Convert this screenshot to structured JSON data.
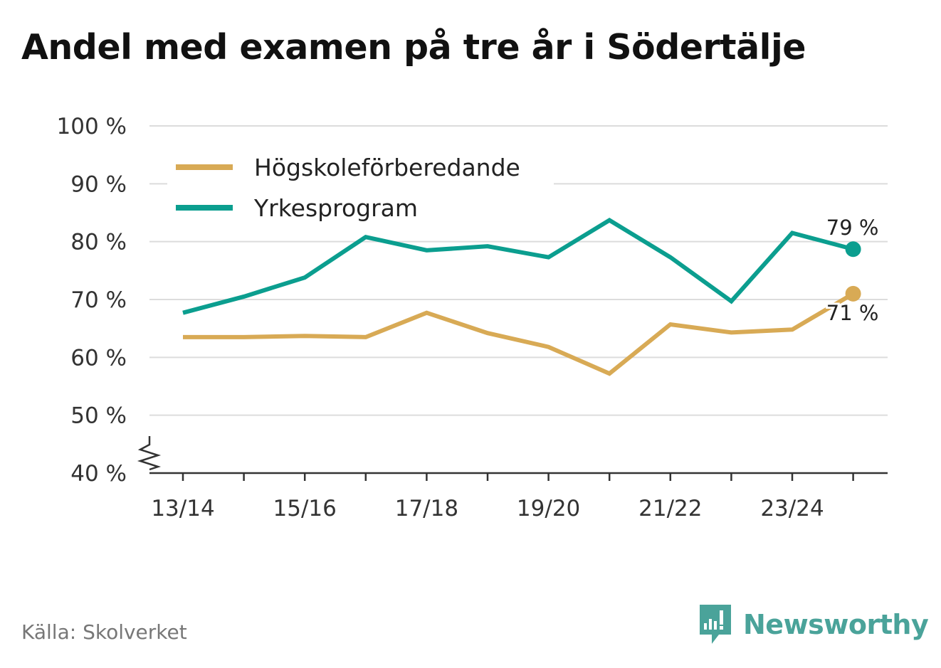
{
  "title": "Andel med examen på tre år i Södertälje",
  "source": "Källa: Skolverket",
  "brand": {
    "name": "Newsworthy",
    "icon": "newsworthy-logo-icon"
  },
  "chart_data": {
    "type": "line",
    "title": "Andel med examen på tre år i Södertälje",
    "x": [
      "13/14",
      "14/15",
      "15/16",
      "16/17",
      "17/18",
      "18/19",
      "19/20",
      "20/21",
      "21/22",
      "22/23",
      "23/24",
      "24/25"
    ],
    "x_tick_labels": [
      "13/14",
      "15/16",
      "17/18",
      "19/20",
      "21/22",
      "23/24"
    ],
    "y_tick_labels": [
      "40 %",
      "50 %",
      "60 %",
      "70 %",
      "80 %",
      "90 %",
      "100 %"
    ],
    "ylim": [
      40,
      100
    ],
    "grid": true,
    "axis_break": true,
    "legend_position": "top-left",
    "series": [
      {
        "name": "Högskoleförberedande",
        "color": "#d8aa55",
        "values": [
          63.5,
          63.5,
          63.7,
          63.5,
          67.7,
          64.2,
          61.8,
          57.2,
          65.7,
          64.3,
          64.8,
          71.0
        ],
        "end_label": "71 %"
      },
      {
        "name": "Yrkesprogram",
        "color": "#0b9e8f",
        "values": [
          67.7,
          70.5,
          73.8,
          80.8,
          78.5,
          79.2,
          77.3,
          83.7,
          77.3,
          69.7,
          81.5,
          78.7
        ],
        "end_label": "79 %"
      }
    ]
  }
}
